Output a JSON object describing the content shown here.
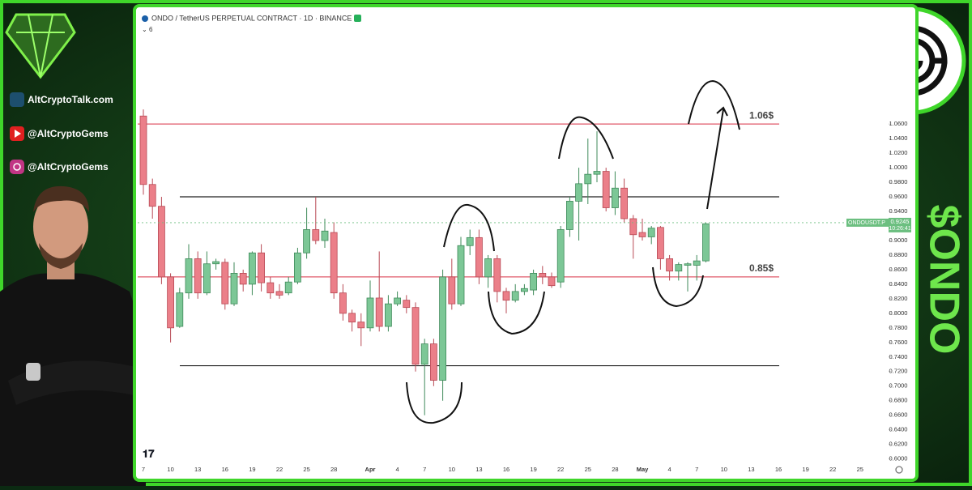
{
  "chart_data": {
    "type": "candlestick",
    "title": "ONDO / TetherUS PERPETUAL CONTRACT · 1D · BINANCE",
    "indicator_count": "6",
    "categories": [
      "7",
      null,
      null,
      "10",
      null,
      null,
      "13",
      null,
      null,
      "16",
      null,
      null,
      "19",
      null,
      null,
      "22",
      null,
      null,
      "25",
      null,
      null,
      "28",
      null,
      null,
      null,
      "Apr",
      null,
      null,
      "4",
      null,
      null,
      "7",
      null,
      null,
      "10",
      null,
      null,
      "13",
      null,
      null,
      "16",
      null,
      null,
      "19",
      null,
      null,
      "22",
      null,
      null,
      "25",
      null,
      null,
      "28",
      null,
      null,
      "May",
      null,
      null,
      "4",
      null,
      null,
      "7",
      null,
      null,
      "10",
      null,
      null,
      "13",
      null,
      null,
      "16",
      null,
      null,
      "19",
      null,
      null,
      "22",
      null,
      null,
      "25"
    ],
    "open": [
      1.071,
      0.977,
      0.947,
      0.85,
      0.782,
      0.828,
      0.875,
      0.828,
      0.868,
      0.87,
      0.813,
      0.855,
      0.84,
      0.883,
      0.842,
      0.83,
      0.828,
      0.843,
      0.883,
      0.915,
      0.9,
      0.911,
      0.828,
      0.8,
      0.788,
      0.78,
      0.821,
      0.782,
      0.813,
      0.818,
      0.808,
      0.73,
      0.758,
      0.708,
      0.85,
      0.813,
      0.893,
      0.904,
      0.85,
      0.875,
      0.83,
      0.818,
      0.83,
      0.832,
      0.855,
      0.85,
      0.843,
      0.915,
      0.954,
      0.978,
      0.991,
      0.995,
      0.945,
      0.972,
      0.93,
      0.911,
      0.905,
      0.918,
      0.875,
      0.858,
      0.866,
      0.866,
      0.872,
      null,
      null,
      null,
      null,
      null,
      null,
      null,
      null,
      null,
      null,
      null,
      null,
      null,
      null,
      null,
      null,
      null
    ],
    "high": [
      1.08,
      0.985,
      0.96,
      0.855,
      0.835,
      0.895,
      0.885,
      0.885,
      0.875,
      0.875,
      0.87,
      0.86,
      0.885,
      0.895,
      0.85,
      0.84,
      0.85,
      0.89,
      0.945,
      0.96,
      0.93,
      0.925,
      0.84,
      0.805,
      0.8,
      0.845,
      0.885,
      0.825,
      0.83,
      0.825,
      0.815,
      0.765,
      0.765,
      0.86,
      0.875,
      0.905,
      0.915,
      0.915,
      0.88,
      0.88,
      0.835,
      0.84,
      0.84,
      0.86,
      0.865,
      0.856,
      0.92,
      0.96,
      1.0,
      1.04,
      1.05,
      1.0,
      0.995,
      0.985,
      0.935,
      0.93,
      0.92,
      0.92,
      0.88,
      0.87,
      0.87,
      0.88,
      0.924,
      null,
      null,
      null,
      null,
      null,
      null,
      null,
      null,
      null,
      null,
      null,
      null,
      null,
      null,
      null,
      null,
      null
    ],
    "low": [
      0.963,
      0.93,
      0.84,
      0.76,
      0.78,
      0.82,
      0.82,
      0.825,
      0.86,
      0.805,
      0.81,
      0.83,
      0.825,
      0.83,
      0.82,
      0.82,
      0.825,
      0.84,
      0.875,
      0.895,
      0.89,
      0.82,
      0.79,
      0.775,
      0.755,
      0.775,
      0.775,
      0.775,
      0.81,
      0.8,
      0.72,
      0.66,
      0.7,
      0.68,
      0.805,
      0.81,
      0.88,
      0.84,
      0.835,
      0.815,
      0.8,
      0.815,
      0.825,
      0.825,
      0.84,
      0.835,
      0.835,
      0.905,
      0.9,
      0.95,
      0.98,
      0.94,
      0.935,
      0.925,
      0.875,
      0.9,
      0.895,
      0.86,
      0.845,
      0.845,
      0.83,
      0.845,
      0.87,
      null,
      null,
      null,
      null,
      null,
      null,
      null,
      null,
      null,
      null,
      null,
      null,
      null,
      null,
      null,
      null,
      null
    ],
    "close": [
      0.977,
      0.947,
      0.85,
      0.78,
      0.828,
      0.875,
      0.828,
      0.868,
      0.871,
      0.813,
      0.855,
      0.84,
      0.883,
      0.842,
      0.828,
      0.825,
      0.843,
      0.883,
      0.915,
      0.9,
      0.913,
      0.828,
      0.8,
      0.788,
      0.78,
      0.821,
      0.782,
      0.813,
      0.821,
      0.808,
      0.73,
      0.758,
      0.708,
      0.85,
      0.813,
      0.893,
      0.904,
      0.85,
      0.875,
      0.83,
      0.818,
      0.83,
      0.834,
      0.855,
      0.85,
      0.838,
      0.915,
      0.954,
      0.978,
      0.991,
      0.995,
      0.945,
      0.972,
      0.93,
      0.908,
      0.905,
      0.917,
      0.875,
      0.858,
      0.867,
      0.868,
      0.872,
      0.923,
      null,
      null,
      null,
      null,
      null,
      null,
      null,
      null,
      null,
      null,
      null,
      null,
      null,
      null,
      null,
      null,
      null
    ],
    "up_color": "#7cc796",
    "down_color": "#eb7f89",
    "ylim": [
      0.594,
      1.197
    ],
    "yticks": [
      {
        "value": 0.6,
        "label": "0.6000"
      },
      {
        "value": 0.62,
        "label": "0.6200"
      },
      {
        "value": 0.64,
        "label": "0.6400"
      },
      {
        "value": 0.66,
        "label": "0.6600"
      },
      {
        "value": 0.68,
        "label": "0.6800"
      },
      {
        "value": 0.7,
        "label": "0.7000"
      },
      {
        "value": 0.72,
        "label": "0.7200"
      },
      {
        "value": 0.74,
        "label": "0.7400"
      },
      {
        "value": 0.76,
        "label": "0.7600"
      },
      {
        "value": 0.78,
        "label": "0.7800"
      },
      {
        "value": 0.8,
        "label": "0.8000"
      },
      {
        "value": 0.82,
        "label": "0.8200"
      },
      {
        "value": 0.84,
        "label": "0.8400"
      },
      {
        "value": 0.86,
        "label": "0.8600"
      },
      {
        "value": 0.88,
        "label": "0.8800"
      },
      {
        "value": 0.9,
        "label": "0.9000"
      },
      {
        "value": 0.92,
        "label": "0.9200"
      },
      {
        "value": 0.94,
        "label": "0.9400"
      },
      {
        "value": 0.96,
        "label": "0.9600"
      },
      {
        "value": 0.98,
        "label": "0.9800"
      },
      {
        "value": 1.0,
        "label": "1.0000"
      },
      {
        "value": 1.02,
        "label": "1.0200"
      },
      {
        "value": 1.04,
        "label": "1.0400"
      },
      {
        "value": 1.06,
        "label": "1.0600"
      }
    ],
    "levels": [
      {
        "value": 1.06,
        "label": "1.06$",
        "color": "#e05a6a"
      },
      {
        "value": 0.85,
        "label": "0.85$",
        "color": "#e05a6a"
      }
    ],
    "lines": [
      {
        "value": 0.96,
        "color": "#222222"
      },
      {
        "value": 0.728,
        "color": "#222222"
      }
    ],
    "price_tag": {
      "symbol": "ONDOUSDT.P",
      "value": 0.9245,
      "label": "0.9245",
      "countdown": "10:26:41",
      "color": "#6cbf80"
    }
  },
  "sidebar": {
    "site": "AltCryptoTalk.com",
    "youtube": "@AltCryptoGems",
    "instagram": "@AltCryptoGems",
    "ticker": "$ONDO"
  }
}
